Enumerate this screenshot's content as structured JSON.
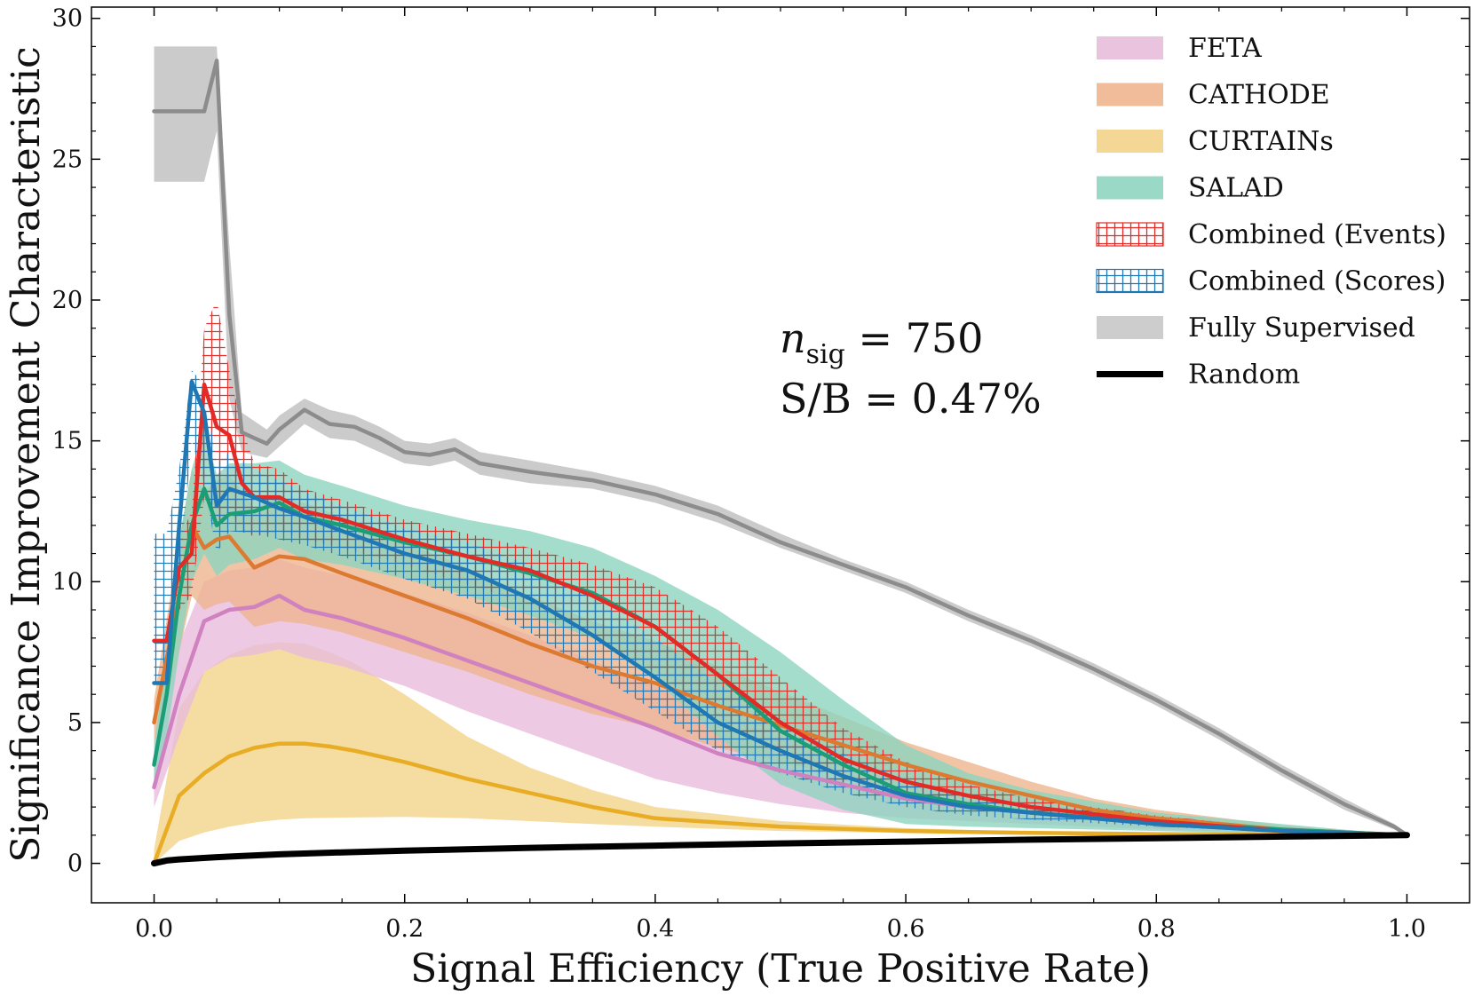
{
  "chart_data": {
    "type": "line",
    "title": "",
    "xlabel": "Signal Efficiency (True Positive Rate)",
    "ylabel": "Significance Improvement Characteristic",
    "xlim": [
      -0.05,
      1.05
    ],
    "ylim": [
      -1.4,
      30.4
    ],
    "x_ticks": [
      0.0,
      0.2,
      0.4,
      0.6,
      0.8,
      1.0
    ],
    "x_tick_labels": [
      "0.0",
      "0.2",
      "0.4",
      "0.6",
      "0.8",
      "1.0"
    ],
    "y_ticks": [
      0,
      5,
      10,
      15,
      20,
      25,
      30
    ],
    "y_tick_labels": [
      "0",
      "5",
      "10",
      "15",
      "20",
      "25",
      "30"
    ],
    "grid": false,
    "legend_position": "top-right",
    "annotations": [
      "n_sig = 750",
      "S/B = 0.47%"
    ],
    "annotation_parts": {
      "n": "n",
      "sub": "sig",
      "nval": " = 750",
      "sb": "S/B = 0.47%"
    },
    "series": [
      {
        "name": "Fully Supervised",
        "legend": "Fully Supervised",
        "color": "#8c8c8c",
        "band_color": "#c8c8c8",
        "band_style": "solid",
        "x": [
          0.0,
          0.04,
          0.05,
          0.06,
          0.07,
          0.08,
          0.09,
          0.1,
          0.12,
          0.14,
          0.16,
          0.18,
          0.2,
          0.22,
          0.24,
          0.26,
          0.3,
          0.35,
          0.4,
          0.45,
          0.5,
          0.55,
          0.6,
          0.65,
          0.7,
          0.75,
          0.8,
          0.85,
          0.9,
          0.95,
          0.99,
          1.0
        ],
        "y": [
          26.7,
          26.7,
          28.5,
          19.5,
          15.3,
          15.1,
          14.9,
          15.4,
          16.1,
          15.6,
          15.5,
          15.1,
          14.6,
          14.5,
          14.7,
          14.2,
          13.9,
          13.6,
          13.1,
          12.4,
          11.4,
          10.6,
          9.8,
          8.8,
          7.9,
          6.9,
          5.8,
          4.6,
          3.3,
          2.1,
          1.3,
          1.0
        ],
        "lower": [
          24.2,
          24.2,
          26.0,
          16.5,
          14.6,
          14.5,
          14.4,
          14.8,
          15.6,
          15.1,
          15.0,
          14.6,
          14.2,
          14.1,
          14.3,
          13.8,
          13.5,
          13.3,
          12.8,
          12.1,
          11.2,
          10.4,
          9.6,
          8.6,
          7.7,
          6.7,
          5.6,
          4.4,
          3.1,
          1.9,
          1.2,
          1.0
        ],
        "upper": [
          29.0,
          29.0,
          29.0,
          22.0,
          16.0,
          15.7,
          15.4,
          15.9,
          16.5,
          16.1,
          15.9,
          15.5,
          15.0,
          14.9,
          15.1,
          14.6,
          14.3,
          13.9,
          13.4,
          12.7,
          11.7,
          10.8,
          10.0,
          9.0,
          8.1,
          7.1,
          6.0,
          4.8,
          3.5,
          2.3,
          1.4,
          1.0
        ]
      },
      {
        "name": "CURTAINs",
        "legend": "CURTAINs",
        "color": "#e8ad25",
        "band_color": "#f3d38a",
        "band_style": "solid",
        "x": [
          0.0,
          0.02,
          0.04,
          0.06,
          0.08,
          0.1,
          0.12,
          0.14,
          0.16,
          0.2,
          0.25,
          0.3,
          0.35,
          0.4,
          0.5,
          0.6,
          0.7,
          0.8,
          0.9,
          1.0
        ],
        "y": [
          0.0,
          2.4,
          3.2,
          3.8,
          4.1,
          4.25,
          4.25,
          4.15,
          4.0,
          3.6,
          3.0,
          2.5,
          2.0,
          1.6,
          1.3,
          1.15,
          1.08,
          1.04,
          1.02,
          1.0
        ],
        "lower": [
          0.0,
          0.8,
          1.1,
          1.3,
          1.45,
          1.55,
          1.6,
          1.62,
          1.63,
          1.65,
          1.6,
          1.5,
          1.4,
          1.3,
          1.15,
          1.08,
          1.04,
          1.02,
          1.01,
          1.0
        ],
        "upper": [
          0.5,
          5.5,
          6.8,
          7.4,
          7.75,
          7.85,
          7.8,
          7.5,
          7.1,
          6.0,
          4.5,
          3.4,
          2.6,
          2.0,
          1.5,
          1.25,
          1.12,
          1.06,
          1.03,
          1.0
        ]
      },
      {
        "name": "FETA",
        "legend": "FETA",
        "color": "#d081bf",
        "band_color": "#e8bcdc",
        "band_style": "solid",
        "x": [
          0.0,
          0.02,
          0.04,
          0.06,
          0.08,
          0.1,
          0.12,
          0.15,
          0.2,
          0.25,
          0.3,
          0.35,
          0.4,
          0.45,
          0.5,
          0.55,
          0.6,
          0.65,
          0.7,
          0.8,
          0.9,
          1.0
        ],
        "y": [
          2.7,
          6.0,
          8.6,
          9.0,
          9.1,
          9.5,
          9.0,
          8.7,
          8.0,
          7.2,
          6.4,
          5.6,
          4.8,
          3.9,
          3.3,
          2.8,
          2.3,
          2.0,
          1.8,
          1.4,
          1.15,
          1.0
        ],
        "lower": [
          2.0,
          4.5,
          6.8,
          7.3,
          7.4,
          7.6,
          7.3,
          7.0,
          6.3,
          5.4,
          4.6,
          3.8,
          3.0,
          2.5,
          2.1,
          1.8,
          1.6,
          1.5,
          1.4,
          1.2,
          1.08,
          1.0
        ],
        "upper": [
          3.5,
          7.8,
          10.0,
          10.4,
          10.5,
          10.8,
          10.5,
          10.2,
          9.6,
          8.9,
          8.1,
          7.2,
          6.3,
          5.3,
          4.5,
          3.8,
          3.1,
          2.6,
          2.2,
          1.7,
          1.25,
          1.0
        ]
      },
      {
        "name": "CATHODE",
        "legend": "CATHODE",
        "color": "#dd7a32",
        "band_color": "#eeb58f",
        "band_style": "solid",
        "x": [
          0.0,
          0.02,
          0.03,
          0.04,
          0.05,
          0.06,
          0.08,
          0.1,
          0.12,
          0.15,
          0.2,
          0.25,
          0.3,
          0.35,
          0.4,
          0.45,
          0.5,
          0.55,
          0.6,
          0.65,
          0.7,
          0.75,
          0.8,
          0.9,
          1.0
        ],
        "y": [
          5.0,
          9.5,
          12.0,
          11.2,
          11.5,
          11.6,
          10.5,
          10.9,
          10.8,
          10.3,
          9.5,
          8.7,
          7.8,
          7.0,
          6.4,
          5.6,
          4.9,
          4.2,
          3.5,
          2.9,
          2.4,
          1.9,
          1.6,
          1.2,
          1.0
        ],
        "lower": [
          4.2,
          7.5,
          9.5,
          9.0,
          9.2,
          9.3,
          8.4,
          8.6,
          8.5,
          8.2,
          7.5,
          6.8,
          6.0,
          5.3,
          4.8,
          4.1,
          3.6,
          3.1,
          2.6,
          2.2,
          1.9,
          1.6,
          1.4,
          1.1,
          1.0
        ],
        "upper": [
          5.8,
          11.5,
          14.0,
          13.2,
          13.6,
          13.8,
          12.6,
          13.0,
          12.8,
          12.3,
          11.4,
          10.5,
          9.5,
          8.6,
          7.9,
          7.0,
          6.1,
          5.2,
          4.3,
          3.6,
          2.9,
          2.3,
          1.9,
          1.35,
          1.0
        ]
      },
      {
        "name": "SALAD",
        "legend": "SALAD",
        "color": "#1b9e77",
        "band_color": "#8fd5bf",
        "band_style": "solid",
        "x": [
          0.0,
          0.01,
          0.02,
          0.03,
          0.04,
          0.05,
          0.06,
          0.08,
          0.1,
          0.12,
          0.15,
          0.2,
          0.25,
          0.3,
          0.35,
          0.4,
          0.45,
          0.5,
          0.55,
          0.6,
          0.65,
          0.7,
          0.8,
          0.9,
          1.0
        ],
        "y": [
          3.5,
          6.0,
          9.5,
          12.0,
          13.3,
          12.0,
          12.4,
          12.5,
          12.8,
          12.3,
          12.0,
          11.4,
          10.9,
          10.3,
          9.6,
          8.4,
          6.7,
          4.7,
          3.5,
          2.5,
          2.1,
          1.8,
          1.45,
          1.2,
          1.0
        ],
        "lower": [
          2.8,
          4.5,
          7.5,
          10.0,
          11.0,
          10.2,
          10.6,
          10.8,
          11.2,
          10.8,
          10.6,
          10.1,
          9.5,
          8.8,
          8.0,
          6.5,
          4.5,
          2.8,
          1.9,
          1.4,
          1.3,
          1.25,
          1.15,
          1.05,
          1.0
        ],
        "upper": [
          4.2,
          7.5,
          11.5,
          14.0,
          15.5,
          13.8,
          14.2,
          14.2,
          14.3,
          13.8,
          13.4,
          12.7,
          12.2,
          11.8,
          11.2,
          10.2,
          9.0,
          7.5,
          5.8,
          4.2,
          3.2,
          2.6,
          1.8,
          1.4,
          1.0
        ]
      },
      {
        "name": "Combined (Events)",
        "legend": "Combined (Events)",
        "color": "#e22a26",
        "band_color": "#e22a26",
        "band_style": "hatch",
        "x": [
          0.0,
          0.01,
          0.02,
          0.03,
          0.04,
          0.05,
          0.06,
          0.07,
          0.08,
          0.1,
          0.12,
          0.15,
          0.2,
          0.25,
          0.3,
          0.35,
          0.4,
          0.45,
          0.5,
          0.55,
          0.6,
          0.65,
          0.7,
          0.8,
          0.9,
          1.0
        ],
        "y": [
          7.9,
          7.9,
          10.5,
          11.0,
          17.0,
          15.5,
          15.2,
          13.5,
          13.0,
          13.0,
          12.5,
          12.2,
          11.5,
          10.9,
          10.4,
          9.5,
          8.4,
          6.7,
          5.0,
          3.7,
          2.9,
          2.4,
          2.0,
          1.5,
          1.15,
          1.0
        ],
        "lower": [
          7.9,
          7.9,
          9.0,
          9.5,
          13.0,
          12.0,
          12.5,
          11.8,
          11.6,
          11.8,
          11.5,
          11.2,
          10.6,
          9.9,
          9.2,
          8.1,
          6.8,
          5.2,
          3.8,
          2.8,
          2.3,
          2.0,
          1.7,
          1.35,
          1.1,
          1.0
        ],
        "upper": [
          7.9,
          7.9,
          11.5,
          12.5,
          19.0,
          20.0,
          17.5,
          15.5,
          14.2,
          14.0,
          13.3,
          12.9,
          12.2,
          11.7,
          11.2,
          10.6,
          9.8,
          8.4,
          6.6,
          4.8,
          3.6,
          2.8,
          2.3,
          1.7,
          1.25,
          1.0
        ]
      },
      {
        "name": "Combined (Scores)",
        "legend": "Combined (Scores)",
        "color": "#1f77b4",
        "band_color": "#1f77b4",
        "band_style": "hatch",
        "x": [
          0.0,
          0.01,
          0.02,
          0.03,
          0.04,
          0.05,
          0.06,
          0.08,
          0.1,
          0.12,
          0.15,
          0.2,
          0.25,
          0.3,
          0.35,
          0.4,
          0.45,
          0.5,
          0.55,
          0.6,
          0.65,
          0.7,
          0.8,
          0.9,
          1.0
        ],
        "y": [
          6.4,
          6.4,
          12.0,
          17.1,
          16.0,
          12.7,
          13.3,
          13.0,
          12.6,
          12.3,
          11.8,
          11.0,
          10.4,
          9.4,
          8.1,
          6.6,
          5.0,
          4.0,
          3.1,
          2.4,
          2.0,
          1.8,
          1.4,
          1.15,
          1.0
        ],
        "lower": [
          6.4,
          6.4,
          10.0,
          15.0,
          13.5,
          11.0,
          11.8,
          11.7,
          11.5,
          11.3,
          10.9,
          10.1,
          9.4,
          8.2,
          6.8,
          5.4,
          4.0,
          3.2,
          2.5,
          2.0,
          1.7,
          1.55,
          1.3,
          1.1,
          1.0
        ],
        "upper": [
          11.7,
          11.7,
          14.0,
          17.5,
          17.0,
          14.2,
          14.6,
          14.0,
          13.6,
          13.2,
          12.7,
          11.9,
          11.4,
          10.6,
          9.4,
          8.0,
          6.4,
          5.0,
          3.9,
          3.0,
          2.4,
          2.1,
          1.6,
          1.25,
          1.0
        ]
      },
      {
        "name": "Random",
        "legend": "Random",
        "color": "#000000",
        "band_color": "",
        "band_style": "none",
        "x": [
          0.0,
          0.01,
          0.02,
          0.05,
          0.1,
          0.15,
          0.2,
          0.3,
          0.4,
          0.5,
          0.6,
          0.7,
          0.8,
          0.9,
          1.0
        ],
        "y": [
          0.0,
          0.1,
          0.14,
          0.22,
          0.32,
          0.39,
          0.45,
          0.55,
          0.63,
          0.71,
          0.77,
          0.84,
          0.89,
          0.95,
          1.0
        ]
      }
    ],
    "legend_order": [
      "FETA",
      "CATHODE",
      "CURTAINs",
      "SALAD",
      "Combined (Events)",
      "Combined (Scores)",
      "Fully Supervised",
      "Random"
    ]
  }
}
